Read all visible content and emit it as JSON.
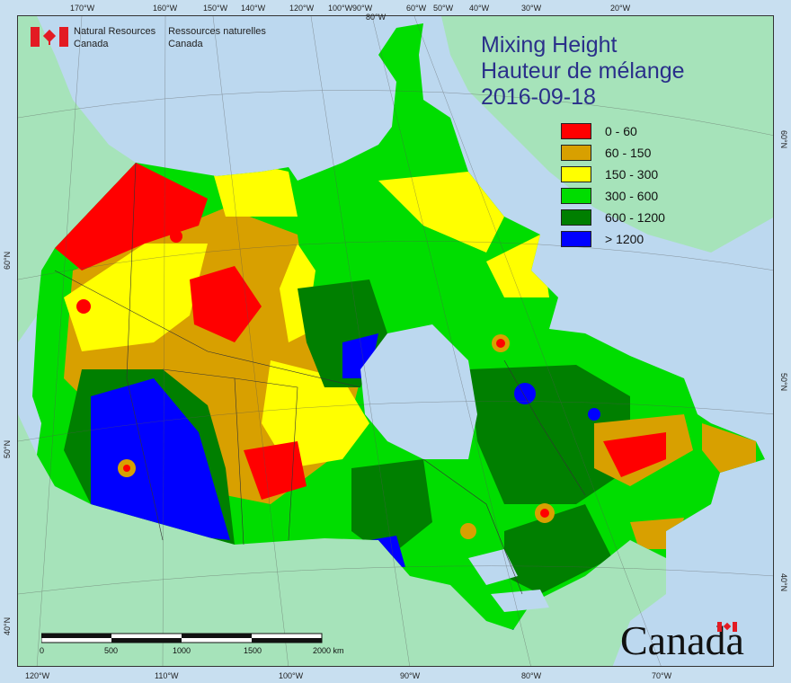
{
  "title": {
    "line1": "Mixing Height",
    "line2": "Hauteur de mélange",
    "date": "2016-09-18"
  },
  "agency": {
    "en_line1": "Natural Resources",
    "en_line2": "Canada",
    "fr_line1": "Ressources naturelles",
    "fr_line2": "Canada"
  },
  "wordmark": "Canada",
  "legend": {
    "items": [
      {
        "label": "0 - 60",
        "color": "#ff0000"
      },
      {
        "label": "60 - 150",
        "color": "#d8a000"
      },
      {
        "label": "150 - 300",
        "color": "#ffff00"
      },
      {
        "label": "300 - 600",
        "color": "#00dd00"
      },
      {
        "label": "600 - 1200",
        "color": "#007f00"
      },
      {
        "label": "> 1200",
        "color": "#0000ff"
      }
    ]
  },
  "scalebar": {
    "ticks": [
      "0",
      "500",
      "1000",
      "1500",
      "2000 km"
    ]
  },
  "graticule": {
    "top_labels": [
      "170°W",
      "160°W",
      "150°W",
      "140°W",
      "120°W",
      "100°W",
      "90°W",
      "80°W",
      "60°W",
      "50°W",
      "40°W",
      "30°W",
      "20°W"
    ],
    "bottom_labels": [
      "120°W",
      "110°W",
      "100°W",
      "90°W",
      "80°W",
      "70°W"
    ],
    "left_labels": [
      "60°N",
      "50°N",
      "40°N"
    ],
    "right_labels": [
      "60°N",
      "50°N",
      "40°N"
    ]
  },
  "colors": {
    "ocean": "#bcd8ef",
    "non_canada_land": "#a6e3ba",
    "title_text": "#2a2f8a"
  }
}
